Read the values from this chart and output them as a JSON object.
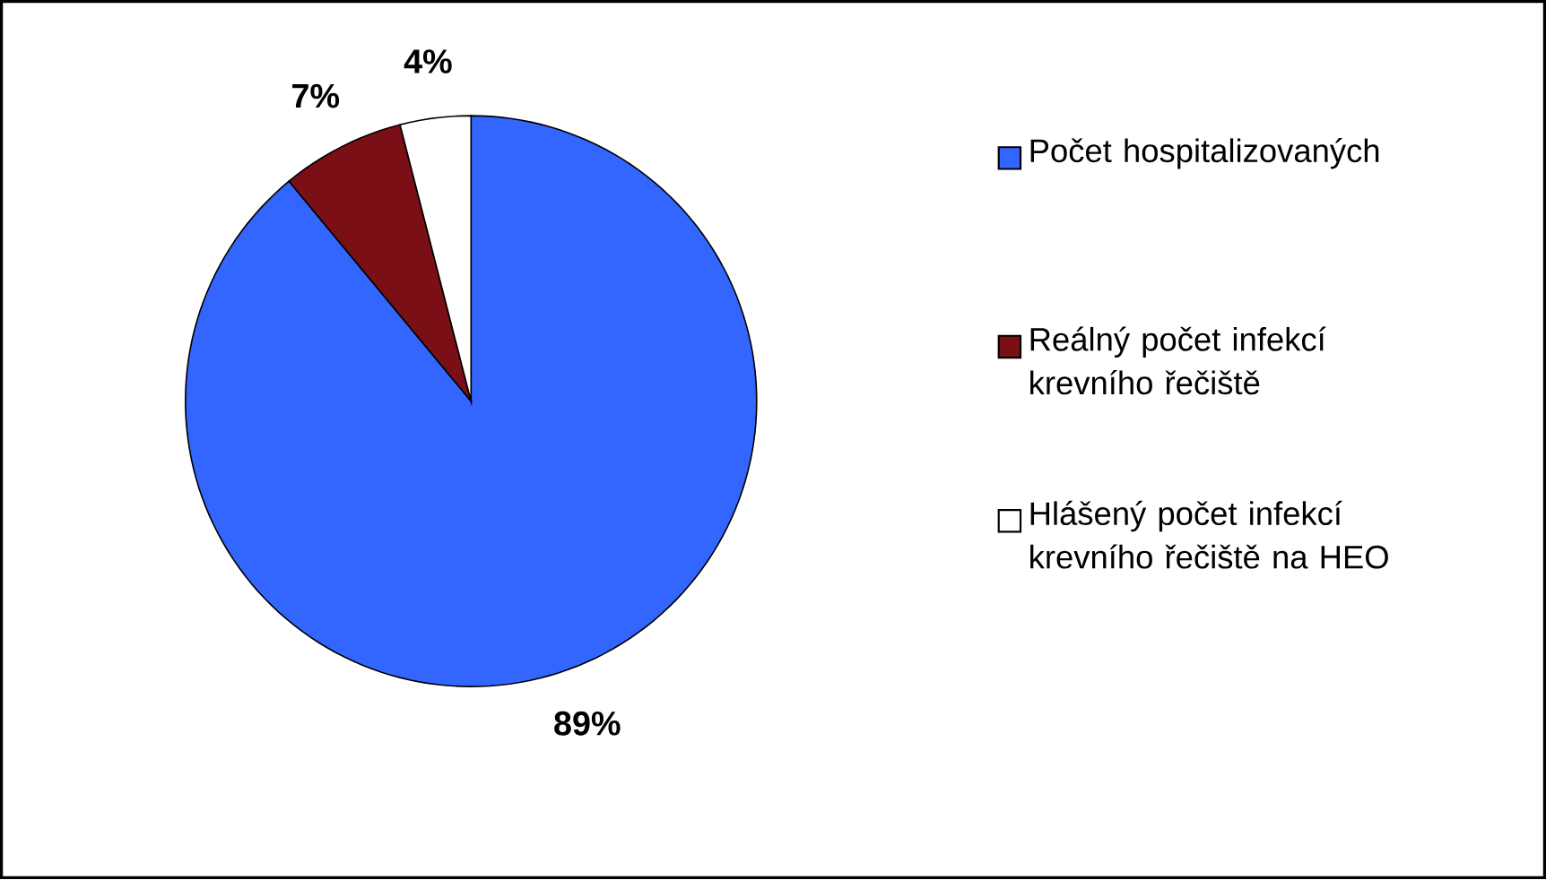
{
  "chart_data": {
    "type": "pie",
    "categories": [
      "Počet hospitalizovaných",
      "Reálný počet infekcí krevního řečiště",
      "Hlášený počet infekcí krevního řečiště na HEO"
    ],
    "values": [
      89,
      7,
      4
    ],
    "colors": [
      "#3366ff",
      "#7a1016",
      "#ffffff"
    ],
    "value_labels": [
      "89%",
      "7%",
      "4%"
    ],
    "legend": "right"
  }
}
